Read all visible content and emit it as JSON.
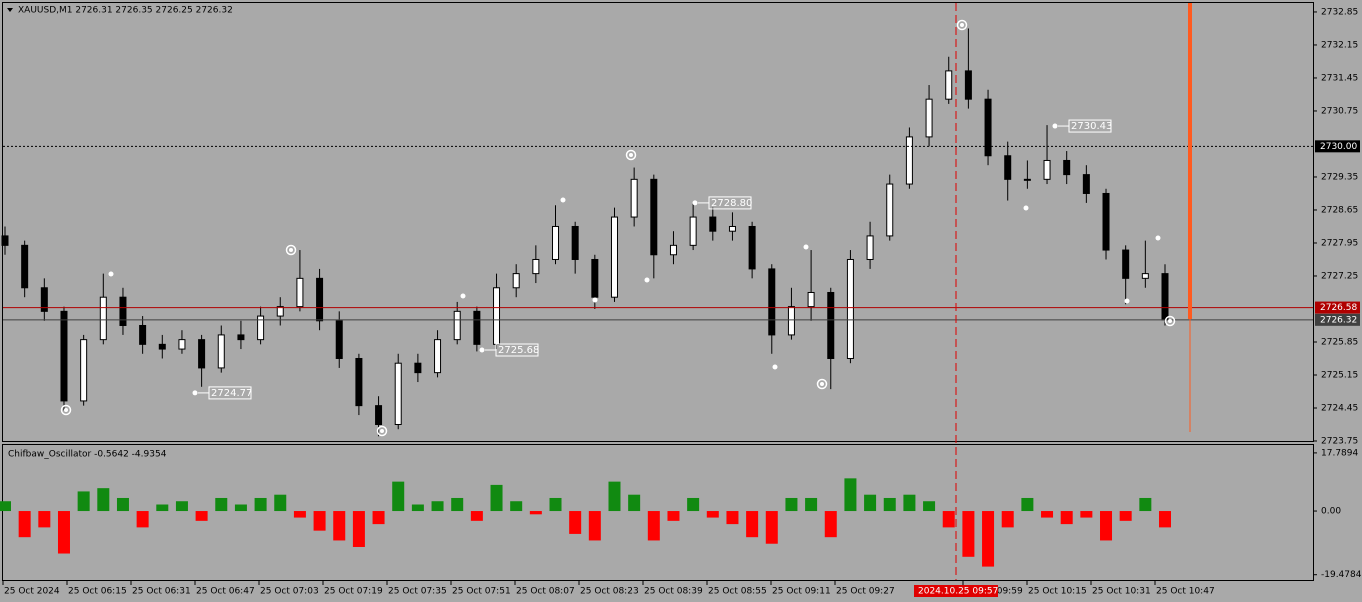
{
  "chart_data": [
    {
      "type": "candlestick",
      "title": "XAUUSD,M1  2726.31 2726.35 2726.25 2726.32",
      "open": [
        2728.1,
        2727.9,
        2727.0,
        2726.5,
        2724.6,
        2725.9,
        2726.8,
        2726.2,
        2725.8,
        2725.7,
        2725.9,
        2725.3,
        2726.0,
        2725.9,
        2726.4,
        2726.6,
        2727.2,
        2726.3,
        2725.5,
        2724.5,
        2724.1,
        2725.4,
        2725.2,
        2725.9,
        2726.5,
        2725.8,
        2727.0,
        2727.3,
        2727.6,
        2728.3,
        2727.6,
        2726.8,
        2728.5,
        2729.3,
        2727.7,
        2727.9,
        2728.5,
        2728.2,
        2728.3,
        2727.4,
        2726.0,
        2726.6,
        2726.9,
        2725.5,
        2727.6,
        2728.1,
        2729.2,
        2730.2,
        2731.0,
        2731.6,
        2731.0,
        2729.8,
        2729.3,
        2729.3,
        2729.7,
        2729.4,
        2729.0,
        2727.8,
        2727.2,
        2727.3
      ],
      "high": [
        2728.3,
        2728.0,
        2727.2,
        2726.6,
        2726.0,
        2727.3,
        2727.0,
        2726.4,
        2726.0,
        2726.1,
        2726.0,
        2726.2,
        2726.3,
        2726.6,
        2726.8,
        2727.8,
        2727.4,
        2726.5,
        2725.6,
        2724.7,
        2725.6,
        2725.6,
        2726.1,
        2726.7,
        2726.6,
        2727.3,
        2727.5,
        2727.9,
        2728.75,
        2728.4,
        2727.7,
        2728.7,
        2729.55,
        2729.4,
        2728.2,
        2728.8,
        2728.7,
        2728.6,
        2728.4,
        2727.5,
        2727.0,
        2727.8,
        2727.0,
        2727.8,
        2728.4,
        2729.4,
        2730.4,
        2731.3,
        2731.9,
        2732.5,
        2731.2,
        2730.1,
        2729.7,
        2730.45,
        2729.9,
        2729.6,
        2729.1,
        2727.9,
        2728.0,
        2727.5
      ],
      "low": [
        2727.7,
        2726.8,
        2726.3,
        2724.4,
        2724.5,
        2725.8,
        2726.0,
        2725.6,
        2725.5,
        2725.6,
        2724.9,
        2725.2,
        2725.7,
        2725.8,
        2726.2,
        2726.5,
        2726.1,
        2725.3,
        2724.3,
        2723.85,
        2724.0,
        2725.0,
        2725.1,
        2725.8,
        2725.65,
        2725.7,
        2726.8,
        2727.1,
        2727.5,
        2727.3,
        2726.55,
        2726.7,
        2728.3,
        2727.2,
        2727.5,
        2727.8,
        2728.0,
        2728.0,
        2727.2,
        2725.6,
        2725.9,
        2726.3,
        2724.85,
        2725.4,
        2727.4,
        2728.0,
        2729.1,
        2730.0,
        2730.9,
        2730.8,
        2729.6,
        2728.85,
        2729.1,
        2729.2,
        2729.2,
        2728.8,
        2727.6,
        2726.65,
        2727.0,
        2726.2
      ],
      "close": [
        2727.9,
        2727.0,
        2726.5,
        2724.6,
        2725.9,
        2726.8,
        2726.2,
        2725.8,
        2725.7,
        2725.9,
        2725.3,
        2726.0,
        2725.9,
        2726.4,
        2726.6,
        2727.2,
        2726.3,
        2725.5,
        2724.5,
        2724.1,
        2725.4,
        2725.2,
        2725.9,
        2726.5,
        2725.8,
        2727.0,
        2727.3,
        2727.6,
        2728.3,
        2727.6,
        2726.8,
        2728.5,
        2729.3,
        2727.7,
        2727.9,
        2728.5,
        2728.2,
        2728.3,
        2727.4,
        2726.0,
        2726.6,
        2726.9,
        2725.5,
        2727.6,
        2728.1,
        2729.2,
        2730.2,
        2731.0,
        2731.6,
        2731.0,
        2729.8,
        2729.3,
        2729.3,
        2729.7,
        2729.4,
        2729.0,
        2727.8,
        2727.2,
        2727.3,
        2726.32
      ],
      "ylim": [
        2723.75,
        2733.04
      ],
      "yticks": [
        2732.85,
        2732.15,
        2731.45,
        2730.75,
        2729.35,
        2728.65,
        2727.95,
        2727.25,
        2725.85,
        2725.15,
        2724.45,
        2723.75
      ],
      "levels": [
        {
          "value": 2730,
          "label": "2730.00",
          "color": "#000000"
        },
        {
          "value": 2726.58,
          "label": "2726.58",
          "color": "#b00000"
        },
        {
          "value": 2726.32,
          "label": "2726.32",
          "color": "#404040"
        }
      ],
      "annotations": [
        {
          "value": 2730.43,
          "label": "2730.43"
        },
        {
          "value": 2728.8,
          "label": "2728.80"
        },
        {
          "value": 2725.68,
          "label": "2725.68"
        },
        {
          "value": 2724.77,
          "label": "2724.77"
        }
      ],
      "xtick_labels": [
        "25 Oct 2024",
        "25 Oct 06:15",
        "25 Oct 06:31",
        "25 Oct 06:47",
        "25 Oct 07:03",
        "25 Oct 07:19",
        "25 Oct 07:35",
        "25 Oct 07:51",
        "25 Oct 08:07",
        "25 Oct 08:23",
        "25 Oct 08:39",
        "25 Oct 08:55",
        "25 Oct 09:11",
        "25 Oct 09:27",
        "25 Oct 09:59",
        "25 Oct 10:15",
        "25 Oct 10:31",
        "25 Oct 10:47"
      ],
      "cursor_label": "2024.10.25 09:57"
    },
    {
      "type": "bar",
      "title": "Chifbaw_Oscillator -0.5642 -4.9354",
      "values": [
        3,
        -8,
        -5,
        -13,
        6,
        7,
        4,
        -5,
        2,
        3,
        -3,
        4,
        2,
        4,
        5,
        -2,
        -6,
        -9,
        -11,
        -4,
        9,
        2,
        3,
        4,
        -3,
        8,
        3,
        -1,
        4,
        -7,
        -9,
        9,
        5,
        -9,
        -3,
        4,
        -2,
        -4,
        -8,
        -10,
        4,
        4,
        -8,
        10,
        5,
        4,
        5,
        3,
        -5,
        -14,
        -17,
        -5,
        4,
        -2,
        -4,
        -2,
        -9,
        -3,
        4,
        -5
      ],
      "positive_color": "#118a11",
      "negative_color": "#ff0000",
      "ylim": [
        -21.1,
        19.9
      ],
      "yticks": [
        17.7894,
        {
          "value": 0,
          "label": "0.00"
        },
        -19.4784
      ]
    }
  ]
}
